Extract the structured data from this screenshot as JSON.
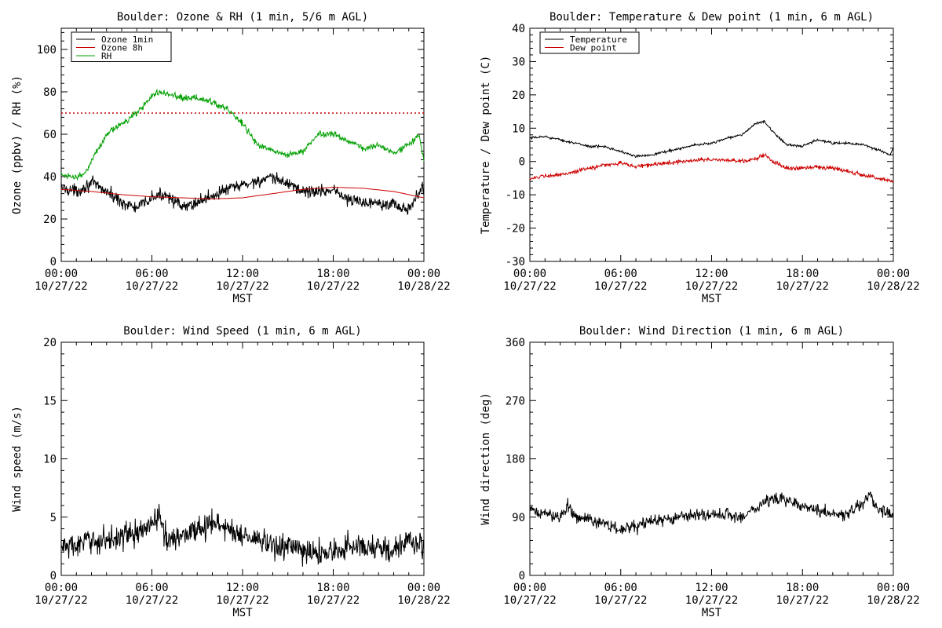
{
  "chart_data": [
    {
      "type": "line",
      "title": "Boulder: Ozone & RH (1 min, 5/6 m AGL)",
      "xlabel": "MST",
      "ylabel": "Ozone (ppbv) / RH (%)",
      "xlim": [
        "10/27/22 00:00",
        "10/28/22 00:00"
      ],
      "xticks": [
        {
          "time": "00:00",
          "date": "10/27/22"
        },
        {
          "time": "06:00",
          "date": "10/27/22"
        },
        {
          "time": "12:00",
          "date": "10/27/22"
        },
        {
          "time": "18:00",
          "date": "10/27/22"
        },
        {
          "time": "00:00",
          "date": "10/28/22"
        }
      ],
      "ylim": [
        0,
        110
      ],
      "yticks": [
        0,
        20,
        40,
        60,
        80,
        100
      ],
      "legend_position": "top-left",
      "reference_line": {
        "y": 70,
        "color": "#cc0000",
        "style": "dotted"
      },
      "series": [
        {
          "name": "Ozone 1min",
          "color": "#000000",
          "noise": 2.5,
          "hours": [
            0,
            1,
            2,
            3,
            4,
            5,
            6,
            7,
            8,
            9,
            10,
            11,
            12,
            13,
            14,
            15,
            16,
            17,
            18,
            19,
            20,
            21,
            22,
            23,
            24
          ],
          "values": [
            35,
            33,
            37,
            33,
            28,
            25,
            30,
            32,
            25,
            28,
            31,
            34,
            36,
            38,
            39,
            37,
            33,
            33,
            34,
            29,
            28,
            28,
            27,
            24,
            36
          ]
        },
        {
          "name": "Ozone 8h",
          "color": "#cc0000",
          "noise": 0,
          "hours": [
            0,
            2,
            4,
            6,
            8,
            10,
            12,
            14,
            16,
            18,
            20,
            22,
            24
          ],
          "values": [
            34,
            33,
            31.5,
            30.5,
            30,
            29.5,
            30,
            32,
            34,
            35,
            34.5,
            33,
            30
          ]
        },
        {
          "name": "RH",
          "color": "#00a000",
          "noise": 1.2,
          "hours": [
            0,
            1,
            1.5,
            2,
            3,
            4,
            5,
            5.5,
            6,
            6.5,
            8,
            9,
            10,
            11,
            12,
            13,
            14,
            15,
            16,
            17,
            18,
            19,
            20,
            21,
            22,
            23,
            23.7,
            24
          ],
          "values": [
            41,
            40,
            41,
            47,
            60,
            65,
            70,
            74,
            78,
            80,
            77,
            77,
            75,
            72,
            65,
            55,
            52,
            50,
            52,
            60,
            60,
            57,
            53,
            55,
            51,
            55,
            59,
            47
          ]
        }
      ]
    },
    {
      "type": "line",
      "title": "Boulder: Temperature & Dew point (1 min, 6 m AGL)",
      "xlabel": "MST",
      "ylabel": "Temperature / Dew point (C)",
      "xlim": [
        "10/27/22 00:00",
        "10/28/22 00:00"
      ],
      "xticks": [
        {
          "time": "00:00",
          "date": "10/27/22"
        },
        {
          "time": "06:00",
          "date": "10/27/22"
        },
        {
          "time": "12:00",
          "date": "10/27/22"
        },
        {
          "time": "18:00",
          "date": "10/27/22"
        },
        {
          "time": "00:00",
          "date": "10/28/22"
        }
      ],
      "ylim": [
        -30,
        40
      ],
      "yticks": [
        -30,
        -20,
        -10,
        0,
        10,
        20,
        30,
        40
      ],
      "legend_position": "top-left",
      "series": [
        {
          "name": "Temperature",
          "color": "#000000",
          "noise": 0.3,
          "hours": [
            0,
            1,
            2,
            3,
            4,
            5,
            6,
            7,
            8,
            9,
            10,
            11,
            12,
            13,
            14,
            14.8,
            15,
            15.5,
            16,
            17,
            18,
            19,
            20,
            21,
            22,
            23,
            23.8,
            24
          ],
          "values": [
            7,
            7.5,
            6.5,
            5.5,
            4.5,
            4.5,
            3,
            1.5,
            2,
            3,
            4,
            5,
            5.5,
            7,
            8,
            11,
            11.5,
            12,
            9,
            5,
            4.5,
            6.5,
            5.5,
            5.5,
            5,
            3.5,
            2,
            4
          ]
        },
        {
          "name": "Dew point",
          "color": "#cc0000",
          "noise": 0.5,
          "hours": [
            0,
            1,
            2,
            3,
            4,
            5,
            6,
            7,
            8,
            9,
            10,
            11,
            12,
            13,
            14,
            15,
            15.5,
            16,
            17,
            18,
            19,
            20,
            21,
            22,
            23,
            24
          ],
          "values": [
            -5,
            -4.5,
            -4,
            -3,
            -2,
            -1,
            -0.5,
            -1.5,
            -1,
            -0.5,
            0,
            0.5,
            0.5,
            0.5,
            0,
            1,
            2,
            0,
            -2,
            -2,
            -1.5,
            -2,
            -3,
            -4,
            -5,
            -6
          ]
        }
      ]
    },
    {
      "type": "line",
      "title": "Boulder: Wind Speed (1 min, 6 m AGL)",
      "xlabel": "MST",
      "ylabel": "Wind speed (m/s)",
      "xlim": [
        "10/27/22 00:00",
        "10/28/22 00:00"
      ],
      "xticks": [
        {
          "time": "00:00",
          "date": "10/27/22"
        },
        {
          "time": "06:00",
          "date": "10/27/22"
        },
        {
          "time": "12:00",
          "date": "10/27/22"
        },
        {
          "time": "18:00",
          "date": "10/27/22"
        },
        {
          "time": "00:00",
          "date": "10/28/22"
        }
      ],
      "ylim": [
        0,
        20
      ],
      "yticks": [
        0,
        5,
        10,
        15,
        20
      ],
      "series": [
        {
          "color": "#000000",
          "noise": 0.9,
          "hours": [
            0,
            1,
            2,
            3,
            4,
            5,
            6,
            6.5,
            7,
            8,
            9,
            10,
            11,
            12,
            13,
            14,
            15,
            16,
            17,
            18,
            19,
            20,
            21,
            22,
            23,
            24
          ],
          "values": [
            2.5,
            2.5,
            3,
            3,
            3.5,
            3.5,
            4.5,
            5,
            3,
            3.5,
            4,
            4.5,
            4,
            3.5,
            3,
            2.5,
            2.5,
            2,
            2,
            2,
            2.5,
            2.5,
            2.5,
            2,
            3,
            2.5
          ]
        }
      ]
    },
    {
      "type": "line",
      "title": "Boulder: Wind Direction (1 min, 6 m AGL)",
      "xlabel": "MST",
      "ylabel": "Wind direction (deg)",
      "xlim": [
        "10/27/22 00:00",
        "10/28/22 00:00"
      ],
      "xticks": [
        {
          "time": "00:00",
          "date": "10/27/22"
        },
        {
          "time": "06:00",
          "date": "10/27/22"
        },
        {
          "time": "12:00",
          "date": "10/27/22"
        },
        {
          "time": "18:00",
          "date": "10/27/22"
        },
        {
          "time": "00:00",
          "date": "10/28/22"
        }
      ],
      "ylim": [
        0,
        360
      ],
      "yticks": [
        0,
        90,
        180,
        270,
        360
      ],
      "series": [
        {
          "color": "#000000",
          "noise": 8,
          "hours": [
            0,
            1,
            2,
            2.5,
            3,
            4,
            5,
            6,
            7,
            8,
            9,
            10,
            11,
            12,
            13,
            14,
            15,
            16,
            17,
            18,
            19,
            20,
            21,
            22,
            22.5,
            23,
            24
          ],
          "values": [
            100,
            95,
            90,
            110,
            90,
            85,
            80,
            70,
            75,
            85,
            85,
            90,
            95,
            90,
            95,
            90,
            105,
            120,
            115,
            110,
            100,
            95,
            95,
            110,
            125,
            100,
            95
          ]
        }
      ]
    }
  ]
}
